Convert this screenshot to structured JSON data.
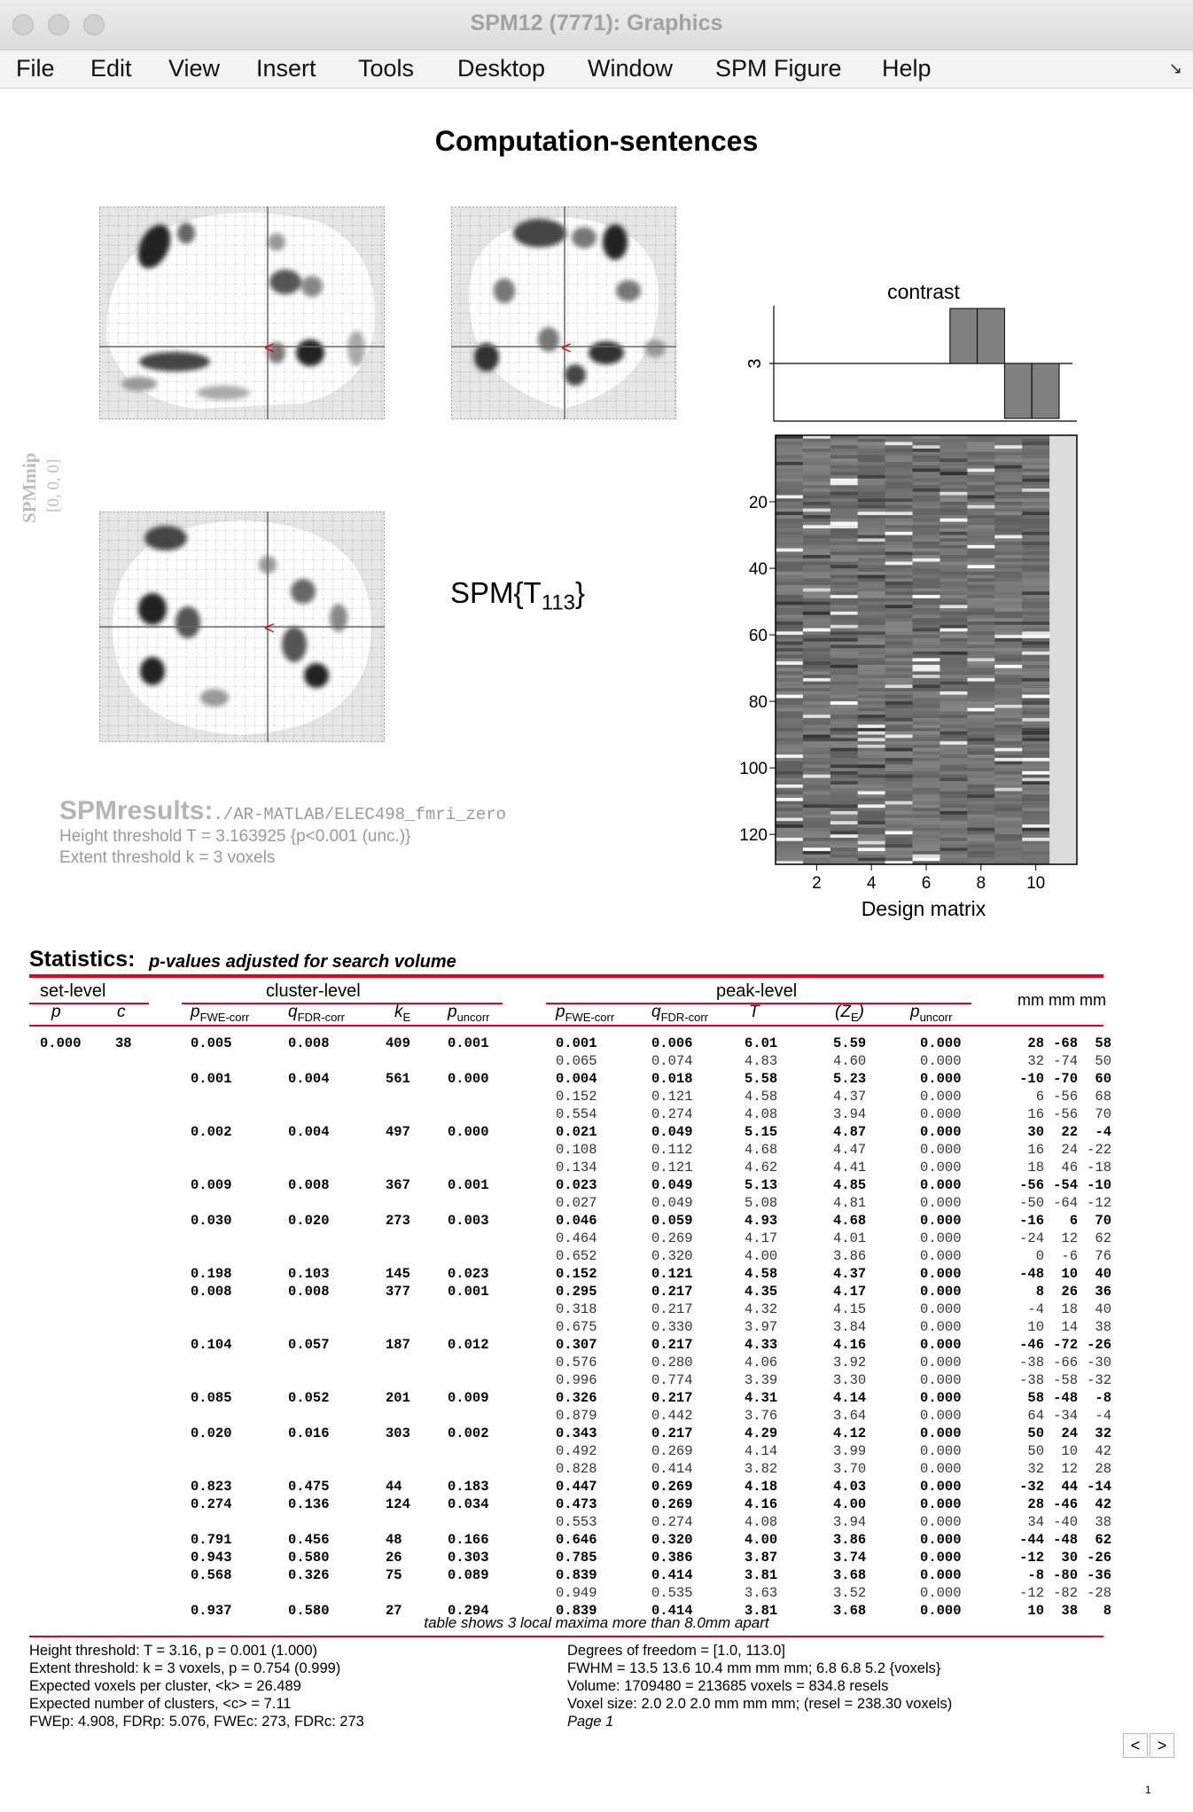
{
  "window": {
    "title": "SPM12 (7771): Graphics"
  },
  "menu": [
    "File",
    "Edit",
    "View",
    "Insert",
    "Tools",
    "Desktop",
    "Window",
    "SPM Figure",
    "Help"
  ],
  "menu_corner_icon": "dock-arrow-icon",
  "figure": {
    "title": "Computation-sentences",
    "spmmip_label": "SPMmip",
    "spmmip_coords": "[0, 0, 0]",
    "stat_label": "SPM{T",
    "stat_df": "113",
    "stat_close": "}",
    "marker_glyph": "<",
    "contrast_title": "contrast",
    "contrast_tick": "3",
    "design_label": "Design matrix",
    "design_yticks": [
      "20",
      "40",
      "60",
      "80",
      "100",
      "120"
    ],
    "design_xticks": [
      "2",
      "4",
      "6",
      "8",
      "10"
    ],
    "results_title": "SPMresults:",
    "results_path": "./AR-MATLAB/ELEC498_fmri_zero",
    "height_line": "Height threshold T = 3.163925  {p<0.001 (unc.)}",
    "extent_line": "Extent threshold k = 3 voxels"
  },
  "chart_data": {
    "type": "bar",
    "title": "contrast",
    "categories": [
      "1",
      "2",
      "3",
      "4",
      "5",
      "6",
      "7",
      "8",
      "9",
      "10",
      "11"
    ],
    "values": [
      0,
      0,
      0,
      0,
      0,
      0,
      1,
      1,
      -1,
      -1,
      0
    ],
    "ylabel": "3",
    "xlabel": ""
  },
  "stats": {
    "title": "Statistics:",
    "subtitle": "p-values adjusted for search volume",
    "groups": {
      "set": "set-level",
      "cluster": "cluster-level",
      "peak": "peak-level",
      "mm": "mm mm mm"
    },
    "headers": {
      "set_p": "p",
      "set_c": "c",
      "cl_fwe": "p",
      "cl_fwe_sub": "FWE-corr",
      "cl_fdr": "q",
      "cl_fdr_sub": "FDR-corr",
      "cl_k": "k",
      "cl_k_sub": "E",
      "cl_unc": "p",
      "cl_unc_sub": "uncorr",
      "pk_fwe": "p",
      "pk_fwe_sub": "FWE-corr",
      "pk_fdr": "q",
      "pk_fdr_sub": "FDR-corr",
      "pk_t": "T",
      "pk_z": "(Z",
      "pk_z_sub": "E",
      "pk_z_close": ")",
      "pk_unc": "p",
      "pk_unc_sub": "uncorr"
    },
    "rows": [
      [
        "0.000",
        "38",
        "0.005",
        "0.008",
        "409",
        "0.001",
        "0.001",
        "0.006",
        "6.01",
        "5.59",
        "0.000",
        "28",
        "-68",
        "58"
      ],
      [
        "",
        "",
        "",
        "",
        "",
        "",
        "0.065",
        "0.074",
        "4.83",
        "4.60",
        "0.000",
        "32",
        "-74",
        "50"
      ],
      [
        "",
        "",
        "0.001",
        "0.004",
        "561",
        "0.000",
        "0.004",
        "0.018",
        "5.58",
        "5.23",
        "0.000",
        "-10",
        "-70",
        "60"
      ],
      [
        "",
        "",
        "",
        "",
        "",
        "",
        "0.152",
        "0.121",
        "4.58",
        "4.37",
        "0.000",
        "6",
        "-56",
        "68"
      ],
      [
        "",
        "",
        "",
        "",
        "",
        "",
        "0.554",
        "0.274",
        "4.08",
        "3.94",
        "0.000",
        "16",
        "-56",
        "70"
      ],
      [
        "",
        "",
        "0.002",
        "0.004",
        "497",
        "0.000",
        "0.021",
        "0.049",
        "5.15",
        "4.87",
        "0.000",
        "30",
        "22",
        "-4"
      ],
      [
        "",
        "",
        "",
        "",
        "",
        "",
        "0.108",
        "0.112",
        "4.68",
        "4.47",
        "0.000",
        "16",
        "24",
        "-22"
      ],
      [
        "",
        "",
        "",
        "",
        "",
        "",
        "0.134",
        "0.121",
        "4.62",
        "4.41",
        "0.000",
        "18",
        "46",
        "-18"
      ],
      [
        "",
        "",
        "0.009",
        "0.008",
        "367",
        "0.001",
        "0.023",
        "0.049",
        "5.13",
        "4.85",
        "0.000",
        "-56",
        "-54",
        "-10"
      ],
      [
        "",
        "",
        "",
        "",
        "",
        "",
        "0.027",
        "0.049",
        "5.08",
        "4.81",
        "0.000",
        "-50",
        "-64",
        "-12"
      ],
      [
        "",
        "",
        "0.030",
        "0.020",
        "273",
        "0.003",
        "0.046",
        "0.059",
        "4.93",
        "4.68",
        "0.000",
        "-16",
        "6",
        "70"
      ],
      [
        "",
        "",
        "",
        "",
        "",
        "",
        "0.464",
        "0.269",
        "4.17",
        "4.01",
        "0.000",
        "-24",
        "12",
        "62"
      ],
      [
        "",
        "",
        "",
        "",
        "",
        "",
        "0.652",
        "0.320",
        "4.00",
        "3.86",
        "0.000",
        "0",
        "-6",
        "76"
      ],
      [
        "",
        "",
        "0.198",
        "0.103",
        "145",
        "0.023",
        "0.152",
        "0.121",
        "4.58",
        "4.37",
        "0.000",
        "-48",
        "10",
        "40"
      ],
      [
        "",
        "",
        "0.008",
        "0.008",
        "377",
        "0.001",
        "0.295",
        "0.217",
        "4.35",
        "4.17",
        "0.000",
        "8",
        "26",
        "36"
      ],
      [
        "",
        "",
        "",
        "",
        "",
        "",
        "0.318",
        "0.217",
        "4.32",
        "4.15",
        "0.000",
        "-4",
        "18",
        "40"
      ],
      [
        "",
        "",
        "",
        "",
        "",
        "",
        "0.675",
        "0.330",
        "3.97",
        "3.84",
        "0.000",
        "10",
        "14",
        "38"
      ],
      [
        "",
        "",
        "0.104",
        "0.057",
        "187",
        "0.012",
        "0.307",
        "0.217",
        "4.33",
        "4.16",
        "0.000",
        "-46",
        "-72",
        "-26"
      ],
      [
        "",
        "",
        "",
        "",
        "",
        "",
        "0.576",
        "0.280",
        "4.06",
        "3.92",
        "0.000",
        "-38",
        "-66",
        "-30"
      ],
      [
        "",
        "",
        "",
        "",
        "",
        "",
        "0.996",
        "0.774",
        "3.39",
        "3.30",
        "0.000",
        "-38",
        "-58",
        "-32"
      ],
      [
        "",
        "",
        "0.085",
        "0.052",
        "201",
        "0.009",
        "0.326",
        "0.217",
        "4.31",
        "4.14",
        "0.000",
        "58",
        "-48",
        "-8"
      ],
      [
        "",
        "",
        "",
        "",
        "",
        "",
        "0.879",
        "0.442",
        "3.76",
        "3.64",
        "0.000",
        "64",
        "-34",
        "-4"
      ],
      [
        "",
        "",
        "0.020",
        "0.016",
        "303",
        "0.002",
        "0.343",
        "0.217",
        "4.29",
        "4.12",
        "0.000",
        "50",
        "24",
        "32"
      ],
      [
        "",
        "",
        "",
        "",
        "",
        "",
        "0.492",
        "0.269",
        "4.14",
        "3.99",
        "0.000",
        "50",
        "10",
        "42"
      ],
      [
        "",
        "",
        "",
        "",
        "",
        "",
        "0.828",
        "0.414",
        "3.82",
        "3.70",
        "0.000",
        "32",
        "12",
        "28"
      ],
      [
        "",
        "",
        "0.823",
        "0.475",
        "44",
        "0.183",
        "0.447",
        "0.269",
        "4.18",
        "4.03",
        "0.000",
        "-32",
        "44",
        "-14"
      ],
      [
        "",
        "",
        "0.274",
        "0.136",
        "124",
        "0.034",
        "0.473",
        "0.269",
        "4.16",
        "4.00",
        "0.000",
        "28",
        "-46",
        "42"
      ],
      [
        "",
        "",
        "",
        "",
        "",
        "",
        "0.553",
        "0.274",
        "4.08",
        "3.94",
        "0.000",
        "34",
        "-40",
        "38"
      ],
      [
        "",
        "",
        "0.791",
        "0.456",
        "48",
        "0.166",
        "0.646",
        "0.320",
        "4.00",
        "3.86",
        "0.000",
        "-44",
        "-48",
        "62"
      ],
      [
        "",
        "",
        "0.943",
        "0.580",
        "26",
        "0.303",
        "0.785",
        "0.386",
        "3.87",
        "3.74",
        "0.000",
        "-12",
        "30",
        "-26"
      ],
      [
        "",
        "",
        "0.568",
        "0.326",
        "75",
        "0.089",
        "0.839",
        "0.414",
        "3.81",
        "3.68",
        "0.000",
        "-8",
        "-80",
        "-36"
      ],
      [
        "",
        "",
        "",
        "",
        "",
        "",
        "0.949",
        "0.535",
        "3.63",
        "3.52",
        "0.000",
        "-12",
        "-82",
        "-28"
      ],
      [
        "",
        "",
        "0.937",
        "0.580",
        "27",
        "0.294",
        "0.839",
        "0.414",
        "3.81",
        "3.68",
        "0.000",
        "10",
        "38",
        "8"
      ]
    ],
    "note": "table shows 3 local maxima more than 8.0mm apart",
    "footer_left": [
      "Height threshold: T = 3.16, p = 0.001 (1.000)",
      "Extent threshold: k = 3 voxels, p = 0.754 (0.999)",
      "Expected voxels per cluster, <k> = 26.489",
      "Expected number of clusters, <c> = 7.11",
      "FWEp: 4.908, FDRp: 5.076, FWEc: 273, FDRc: 273"
    ],
    "footer_right": [
      "Degrees of freedom = [1.0, 113.0]",
      "FWHM = 13.5 13.6 10.4 mm mm mm; 6.8 6.8 5.2 {voxels}",
      "Volume: 1709480 = 213685 voxels = 834.8 resels",
      "Voxel size: 2.0 2.0 2.0 mm mm mm; (resel = 238.30 voxels)"
    ],
    "page_label": "Page 1"
  },
  "nav": {
    "prev": "<",
    "next": ">",
    "page": "1"
  }
}
